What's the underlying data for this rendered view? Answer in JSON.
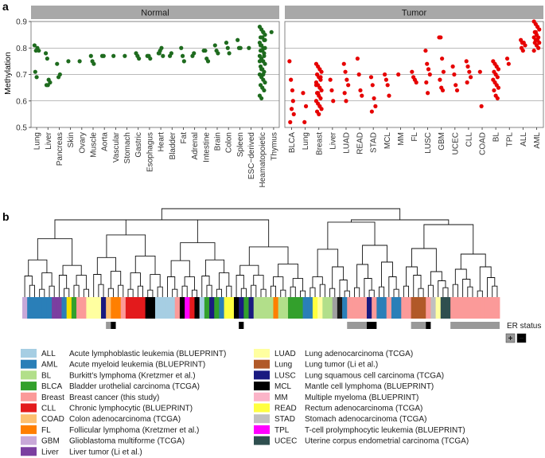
{
  "panels": {
    "a": "a",
    "b": "b"
  },
  "chart_data": [
    {
      "type": "scatter",
      "panel": "a",
      "ylabel": "Methylation",
      "ylim": [
        0.5,
        0.9
      ],
      "yticks": [
        0.5,
        0.6,
        0.7,
        0.8,
        0.9
      ],
      "grid": true,
      "facets": [
        {
          "name": "Normal",
          "color": "#1e6b1e",
          "categories": [
            "Lung",
            "Liver",
            "Pancreas",
            "Skin",
            "Ovary",
            "Muscle",
            "Aorta",
            "Vascular",
            "Stomach",
            "Gastric",
            "Esophagus",
            "Heart",
            "Bladder",
            "Fat",
            "Adrenal",
            "Intestine",
            "Brain",
            "Colon",
            "Spleen",
            "ESC−derived",
            "Heamatopoietic",
            "Thymus"
          ],
          "values": [
            [
              0.81,
              0.79,
              0.8,
              0.79,
              0.71,
              0.69
            ],
            [
              0.78,
              0.76,
              0.68,
              0.67,
              0.66,
              0.66
            ],
            [
              0.74,
              0.69,
              0.7
            ],
            [
              0.75
            ],
            [
              0.75
            ],
            [
              0.77,
              0.75,
              0.74
            ],
            [
              0.77,
              0.77
            ],
            [
              0.77
            ],
            [
              0.77
            ],
            [
              0.78,
              0.77,
              0.76
            ],
            [
              0.77,
              0.77,
              0.76
            ],
            [
              0.78,
              0.79,
              0.8,
              0.77,
              0.78
            ],
            [
              0.77,
              0.78
            ],
            [
              0.8,
              0.77,
              0.75
            ],
            [
              0.77,
              0.78
            ],
            [
              0.79,
              0.79,
              0.76,
              0.75
            ],
            [
              0.81,
              0.79,
              0.78
            ],
            [
              0.82,
              0.8,
              0.78
            ],
            [
              0.83,
              0.8,
              0.8
            ],
            [
              0.8
            ],
            [
              0.88,
              0.87,
              0.86,
              0.85,
              0.84,
              0.84,
              0.83,
              0.82,
              0.81,
              0.8,
              0.8,
              0.79,
              0.79,
              0.78,
              0.77,
              0.76,
              0.75,
              0.74,
              0.73,
              0.72,
              0.71,
              0.7,
              0.69,
              0.68,
              0.67,
              0.66,
              0.65,
              0.64,
              0.62,
              0.61,
              0.86,
              0.83,
              0.81,
              0.79,
              0.77,
              0.75,
              0.72,
              0.7
            ],
            [
              0.86
            ]
          ]
        },
        {
          "name": "Tumor",
          "color": "#e60000",
          "categories": [
            "BLCA",
            "Lung",
            "Breast",
            "Liver",
            "LUAD",
            "READ",
            "STAD",
            "MCL",
            "MM",
            "FL",
            "LUSC",
            "GBM",
            "UCEC",
            "CLL",
            "COAD",
            "BL",
            "TPL",
            "ALL",
            "AML"
          ],
          "values": [
            [
              0.75,
              0.68,
              0.64,
              0.55,
              0.52,
              0.57,
              0.6
            ],
            [
              0.63,
              0.52,
              0.58
            ],
            [
              0.74,
              0.73,
              0.72,
              0.71,
              0.7,
              0.69,
              0.68,
              0.67,
              0.66,
              0.65,
              0.64,
              0.63,
              0.62,
              0.61,
              0.6,
              0.59,
              0.58,
              0.57,
              0.56,
              0.55,
              0.69,
              0.66,
              0.63
            ],
            [
              0.68,
              0.64,
              0.6
            ],
            [
              0.74,
              0.71,
              0.68,
              0.66,
              0.63,
              0.6
            ],
            [
              0.76,
              0.7,
              0.64,
              0.62
            ],
            [
              0.69,
              0.66,
              0.61,
              0.58,
              0.56
            ],
            [
              0.7,
              0.68,
              0.66,
              0.62
            ],
            [
              0.7
            ],
            [
              0.71,
              0.69,
              0.68,
              0.67
            ],
            [
              0.79,
              0.74,
              0.72,
              0.7,
              0.67,
              0.63
            ],
            [
              0.84,
              0.84,
              0.76,
              0.71,
              0.68,
              0.65,
              0.64
            ],
            [
              0.73,
              0.7,
              0.66,
              0.64
            ],
            [
              0.75,
              0.73,
              0.71,
              0.69,
              0.67
            ],
            [
              0.71,
              0.58
            ],
            [
              0.75,
              0.74,
              0.73,
              0.72,
              0.71,
              0.7,
              0.69,
              0.68,
              0.67,
              0.66,
              0.65,
              0.64,
              0.62,
              0.61
            ],
            [
              0.76,
              0.74
            ],
            [
              0.83,
              0.82,
              0.82,
              0.81,
              0.8,
              0.79
            ],
            [
              0.9,
              0.89,
              0.88,
              0.87,
              0.86,
              0.85,
              0.84,
              0.84,
              0.83,
              0.83,
              0.82,
              0.82,
              0.81,
              0.8,
              0.79,
              0.86
            ]
          ]
        }
      ]
    },
    {
      "type": "dendrogram",
      "panel": "b",
      "er_status_label": "ER status",
      "er_legend": [
        {
          "symbol": "+",
          "color": "#999999"
        },
        {
          "symbol": "−",
          "color": "#000000"
        }
      ],
      "sample_colors": [
        "#c8a8d8",
        "#2a7fb8",
        "#2a7fb8",
        "#2a7fb8",
        "#2a7fb8",
        "#2a7fb8",
        "#7b3fa0",
        "#7b3fa0",
        "#2a7fb8",
        "#f5e100",
        "#33a02c",
        "#fb9a99",
        "#fb9a99",
        "#ffffa0",
        "#ffffa0",
        "#ffffa0",
        "#1a1a80",
        "#fdbf6f",
        "#ff7f00",
        "#ff7f00",
        "#fb9a99",
        "#e31a1c",
        "#e31a1c",
        "#e31a1c",
        "#e31a1c",
        "#000000",
        "#000000",
        "#a6cee3",
        "#a6cee3",
        "#a6cee3",
        "#a6cee3",
        "#fb9a99",
        "#000000",
        "#ff00ff",
        "#e31a1c",
        "#000000",
        "#a6cee3",
        "#33a02c",
        "#1a1a80",
        "#33a02c",
        "#2a7fb8",
        "#ffff40",
        "#ffff40",
        "#000000",
        "#1a1a80",
        "#33a02c",
        "#1a1a80",
        "#b2df8a",
        "#b2df8a",
        "#b2df8a",
        "#b2df8a",
        "#ff7f00",
        "#b2df8a",
        "#b2df8a",
        "#33a02c",
        "#33a02c",
        "#33a02c",
        "#2a7fb8",
        "#2a7fb8",
        "#ffff40",
        "#ffffa0",
        "#b2df8a",
        "#b2df8a",
        "#a0a0a0",
        "#1a1a1a",
        "#2a7fb8",
        "#fb9a99",
        "#fb9a99",
        "#fb9a99",
        "#fb9a99",
        "#1a1a80",
        "#fb9a99",
        "#2a7fb8",
        "#2a7fb8",
        "#fb9a99",
        "#2a7fb8",
        "#2a7fb8",
        "#fb9a99",
        "#fb9a99",
        "#b15928",
        "#b15928",
        "#b15928",
        "#fb9a99",
        "#c0c0c0",
        "#ffffa0",
        "#2f4f4f",
        "#2f4f4f",
        "#fb9a99",
        "#fb9a99",
        "#fb9a99",
        "#fb9a99",
        "#fb9a99",
        "#fb9a99",
        "#fb9a99",
        "#fb9a99",
        "#fb9a99",
        "#fb9a99"
      ],
      "er_status": [
        {
          "start": 17,
          "end": 19,
          "status": "+"
        },
        {
          "start": 18,
          "end": 19,
          "status": "−"
        },
        {
          "start": 44,
          "end": 45,
          "status": "−"
        },
        {
          "start": 66,
          "end": 71,
          "status": "+"
        },
        {
          "start": 70,
          "end": 72,
          "status": "−"
        },
        {
          "start": 79,
          "end": 82,
          "status": "+"
        },
        {
          "start": 82,
          "end": 83,
          "status": "−"
        },
        {
          "start": 87,
          "end": 97,
          "status": "+"
        }
      ],
      "legend": [
        {
          "code": "ALL",
          "color": "#a6cee3",
          "description": "Acute lymphoblastic leukemia (BLUEPRINT)"
        },
        {
          "code": "AML",
          "color": "#2a7fb8",
          "description": "Acute myeloid leukemia (BLUEPRINT)"
        },
        {
          "code": "BL",
          "color": "#b2df8a",
          "description": "Burkitt's lymphoma (Kretzmer et al.)"
        },
        {
          "code": "BLCA",
          "color": "#33a02c",
          "description": "Bladder urothelial carcinoma (TCGA)"
        },
        {
          "code": "Breast",
          "color": "#fb9a99",
          "description": "Breast cancer (this study)"
        },
        {
          "code": "CLL",
          "color": "#e31a1c",
          "description": "Chronic lymphocytic (BLUEPRINT)"
        },
        {
          "code": "COAD",
          "color": "#fdbf6f",
          "description": "Colon adenocarcinoma (TCGA)"
        },
        {
          "code": "FL",
          "color": "#ff7f00",
          "description": "Follicular lymphoma (Kretzmer et al.)"
        },
        {
          "code": "GBM",
          "color": "#c8a8d8",
          "description": "Glioblastoma multiforme (TCGA)"
        },
        {
          "code": "Liver",
          "color": "#7b3fa0",
          "description": "Liver tumor (Li et al.)"
        },
        {
          "code": "LUAD",
          "color": "#ffffa0",
          "description": "Lung adenocarcinoma (TCGA)"
        },
        {
          "code": "Lung",
          "color": "#b15928",
          "description": "Lung tumor (Li et al.)"
        },
        {
          "code": "LUSC",
          "color": "#1a1a80",
          "description": "Lung squamous cell carcinoma (TCGA)"
        },
        {
          "code": "MCL",
          "color": "#000000",
          "description": "Mantle cell lymphoma (BLUEPRINT)"
        },
        {
          "code": "MM",
          "color": "#fbb4c8",
          "description": "Multiple myeloma (BLUEPRINT)"
        },
        {
          "code": "READ",
          "color": "#ffff40",
          "description": "Rectum adenocarcinoma (TCGA)"
        },
        {
          "code": "STAD",
          "color": "#c0c0c0",
          "description": "Stomach adenocarcinoma (TCGA)"
        },
        {
          "code": "TPL",
          "color": "#ff00ff",
          "description": "T-cell prolymphocytic leukemia (BLUEPRINT)"
        },
        {
          "code": "UCEC",
          "color": "#2f4f4f",
          "description": "Uterine corpus endometrial carcinoma (TCGA)"
        }
      ]
    }
  ]
}
